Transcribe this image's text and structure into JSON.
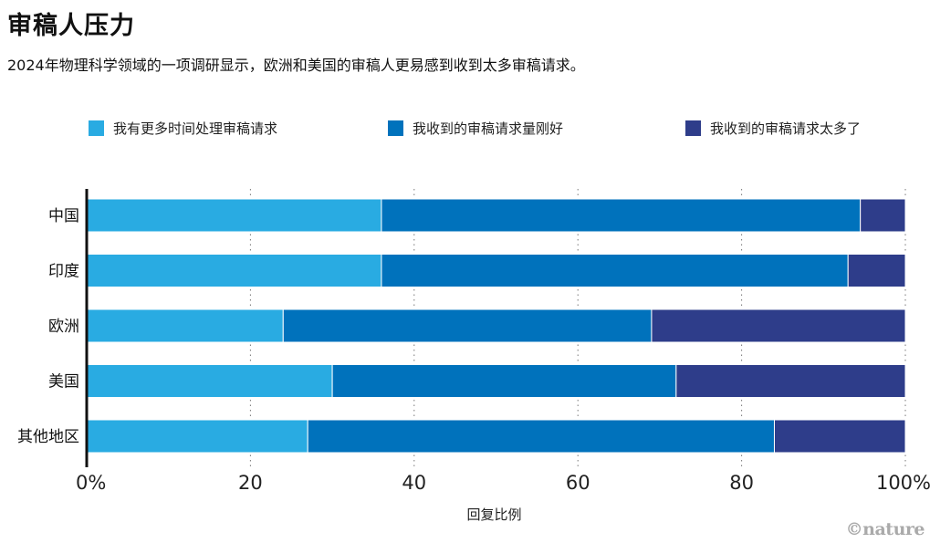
{
  "title": "审稿人压力",
  "subtitle": "2024年物理科学领域的一项调研显示，欧洲和美国的审稿人更易感到收到太多审稿请求。",
  "logo": "©nature",
  "chart_data": {
    "type": "bar",
    "orientation": "horizontal",
    "stacked": true,
    "categories": [
      "中国",
      "印度",
      "欧洲",
      "美国",
      "其他地区"
    ],
    "series": [
      {
        "name": "我有更多时间处理审稿请求",
        "color": "#29abe2",
        "values": [
          36,
          36,
          24,
          30,
          27
        ]
      },
      {
        "name": "我收到的审稿请求量刚好",
        "color": "#0072bc",
        "values": [
          58.5,
          57,
          45,
          42,
          57
        ]
      },
      {
        "name": "我收到的审稿请求太多了",
        "color": "#2e3d8a",
        "values": [
          5.5,
          7,
          31,
          28,
          16
        ]
      }
    ],
    "xlabel": "回复比例",
    "xlim": [
      0,
      100
    ],
    "xticks": [
      "0%",
      "20",
      "40",
      "60",
      "80",
      "100%"
    ],
    "legend_position": "top",
    "grid": "dotted vertical"
  }
}
